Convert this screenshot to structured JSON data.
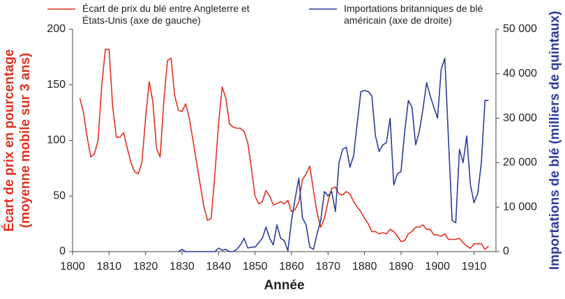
{
  "chart_data": {
    "type": "line",
    "xlabel": "Année",
    "ylabel": [
      "Écart de prix en pourcentage",
      "(moyenne mobile sur 3 ans)"
    ],
    "y2label": "Importations de blé (milliers de quintaux)",
    "xlim": [
      1800,
      1916
    ],
    "xticks": [
      1800,
      1810,
      1820,
      1830,
      1840,
      1850,
      1860,
      1870,
      1880,
      1890,
      1900,
      1910
    ],
    "ylim": [
      0,
      200
    ],
    "yticks": [
      0,
      50,
      100,
      150,
      200
    ],
    "y2lim": [
      0,
      50000
    ],
    "y2ticks": [
      0,
      {
        "value": 10000,
        "label": "10 000"
      },
      {
        "value": 20000,
        "label": "20 000"
      },
      {
        "value": 30000,
        "label": "30 000"
      },
      {
        "value": 40000,
        "label": "40 000"
      },
      {
        "value": 50000,
        "label": "50 000"
      }
    ],
    "grid": false,
    "series": [
      {
        "name": "Écart de prix du blé entre Angleterre et États-Unis (axe de gauche)",
        "color": "#e2301f",
        "axis": "y",
        "x": [
          1802,
          1803,
          1804,
          1805,
          1806,
          1807,
          1808,
          1809,
          1810,
          1811,
          1812,
          1813,
          1814,
          1815,
          1816,
          1817,
          1818,
          1819,
          1820,
          1821,
          1822,
          1823,
          1824,
          1825,
          1826,
          1827,
          1828,
          1829,
          1830,
          1831,
          1832,
          1833,
          1834,
          1835,
          1836,
          1837,
          1838,
          1839,
          1840,
          1841,
          1842,
          1843,
          1844,
          1845,
          1846,
          1847,
          1848,
          1849,
          1850,
          1851,
          1852,
          1853,
          1854,
          1855,
          1856,
          1857,
          1858,
          1859,
          1860,
          1861,
          1862,
          1863,
          1864,
          1865,
          1866,
          1867,
          1868,
          1869,
          1870,
          1871,
          1872,
          1873,
          1874,
          1875,
          1876,
          1877,
          1878,
          1879,
          1880,
          1881,
          1882,
          1883,
          1884,
          1885,
          1886,
          1887,
          1888,
          1889,
          1890,
          1891,
          1892,
          1893,
          1894,
          1895,
          1896,
          1897,
          1898,
          1899,
          1900,
          1901,
          1902,
          1903,
          1904,
          1905,
          1906,
          1907,
          1908,
          1909,
          1910,
          1911,
          1912,
          1913,
          1914
        ],
        "values": [
          138,
          125,
          103,
          85,
          88,
          100,
          150,
          182,
          182,
          130,
          103,
          103,
          107,
          93,
          80,
          72,
          70,
          80,
          120,
          153,
          135,
          93,
          85,
          135,
          172,
          174,
          140,
          127,
          126,
          133,
          120,
          100,
          80,
          60,
          40,
          28,
          30,
          70,
          115,
          148,
          138,
          115,
          112,
          111,
          111,
          108,
          98,
          75,
          50,
          43,
          45,
          55,
          50,
          42,
          43,
          45,
          43,
          46,
          36,
          38,
          45,
          65,
          70,
          77,
          55,
          35,
          22,
          30,
          45,
          57,
          58,
          52,
          51,
          54,
          52,
          45,
          40,
          36,
          30,
          25,
          18,
          18,
          16,
          17,
          16,
          20,
          18,
          14,
          9,
          10,
          16,
          18,
          22,
          22,
          24,
          20,
          20,
          15,
          15,
          14,
          16,
          11,
          11,
          11,
          12,
          8,
          5,
          3,
          7,
          7,
          7,
          2,
          5
        ]
      },
      {
        "name": "Importations britanniques de blé américain (axe de droite)",
        "color": "#2b3c9b",
        "axis": "y2",
        "x": [
          1829,
          1830,
          1831,
          1832,
          1833,
          1834,
          1835,
          1836,
          1837,
          1838,
          1839,
          1840,
          1841,
          1842,
          1843,
          1844,
          1845,
          1846,
          1847,
          1848,
          1849,
          1850,
          1851,
          1852,
          1853,
          1854,
          1855,
          1856,
          1857,
          1858,
          1859,
          1860,
          1861,
          1862,
          1863,
          1864,
          1865,
          1866,
          1867,
          1868,
          1869,
          1870,
          1871,
          1872,
          1873,
          1874,
          1875,
          1876,
          1877,
          1878,
          1879,
          1880,
          1881,
          1882,
          1883,
          1884,
          1885,
          1886,
          1887,
          1888,
          1889,
          1890,
          1891,
          1892,
          1893,
          1894,
          1895,
          1896,
          1897,
          1898,
          1899,
          1900,
          1901,
          1902,
          1903,
          1904,
          1905,
          1906,
          1907,
          1908,
          1909,
          1910,
          1911,
          1912,
          1913,
          1914
        ],
        "values": [
          0,
          500,
          0,
          0,
          0,
          0,
          0,
          0,
          0,
          0,
          0,
          800,
          300,
          500,
          0,
          0,
          500,
          1500,
          3000,
          800,
          1000,
          1000,
          2000,
          3000,
          5500,
          3000,
          1500,
          6000,
          3000,
          2500,
          200,
          7000,
          12000,
          16500,
          7500,
          6000,
          1000,
          500,
          4000,
          7000,
          13500,
          12500,
          13500,
          9000,
          20000,
          23000,
          23500,
          19000,
          21500,
          29000,
          36000,
          36200,
          36000,
          35000,
          26000,
          22500,
          24000,
          24500,
          30000,
          15000,
          17500,
          18000,
          27000,
          34000,
          32500,
          24000,
          27000,
          32000,
          38000,
          35000,
          32500,
          30000,
          41000,
          43500,
          25000,
          7000,
          6500,
          23000,
          20000,
          26000,
          15000,
          11000,
          13000,
          20000,
          34000,
          34000
        ]
      }
    ]
  }
}
